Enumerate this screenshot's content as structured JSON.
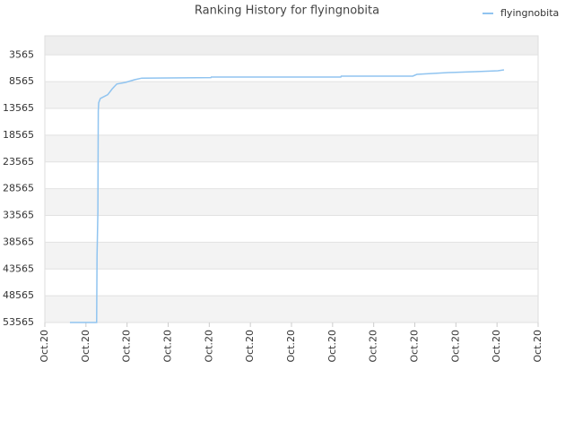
{
  "chart_data": {
    "type": "line",
    "title": "Ranking History for flyingnobita",
    "x": [
      0.61,
      1.26,
      1.27,
      1.29,
      1.3,
      1.31,
      1.35,
      1.53,
      1.64,
      1.75,
      1.96,
      2.18,
      2.36,
      4.04,
      4.05,
      7.2,
      7.21,
      8.95,
      9.05,
      9.82,
      10.47,
      11.02,
      11.17
    ],
    "series": [
      {
        "name": "flyingnobita",
        "color": "#90c4f0",
        "values": [
          53565,
          53565,
          41000,
          33000,
          14000,
          12500,
          11700,
          11000,
          9900,
          9000,
          8700,
          8200,
          7900,
          7800,
          7700,
          7700,
          7530,
          7530,
          7200,
          6870,
          6700,
          6530,
          6360
        ]
      }
    ],
    "xlim": [
      0,
      12
    ],
    "xticks": [
      {
        "value": 0,
        "label": "Oct.20"
      },
      {
        "value": 1,
        "label": "Oct.20"
      },
      {
        "value": 2,
        "label": "Oct.20"
      },
      {
        "value": 3,
        "label": "Oct.20"
      },
      {
        "value": 4,
        "label": "Oct.20"
      },
      {
        "value": 5,
        "label": "Oct.20"
      },
      {
        "value": 6,
        "label": "Oct.20"
      },
      {
        "value": 7,
        "label": "Oct.20"
      },
      {
        "value": 8,
        "label": "Oct.20"
      },
      {
        "value": 9,
        "label": "Oct.20"
      },
      {
        "value": 10,
        "label": "Oct.20"
      },
      {
        "value": 11,
        "label": "Oct.20"
      },
      {
        "value": 12,
        "label": "Oct.20"
      }
    ],
    "ylim": [
      53565,
      0
    ],
    "yticks": [
      3565,
      8565,
      13565,
      18565,
      23565,
      28565,
      33565,
      38565,
      43565,
      48565,
      53565
    ],
    "grid": true,
    "legend": "top-right"
  }
}
